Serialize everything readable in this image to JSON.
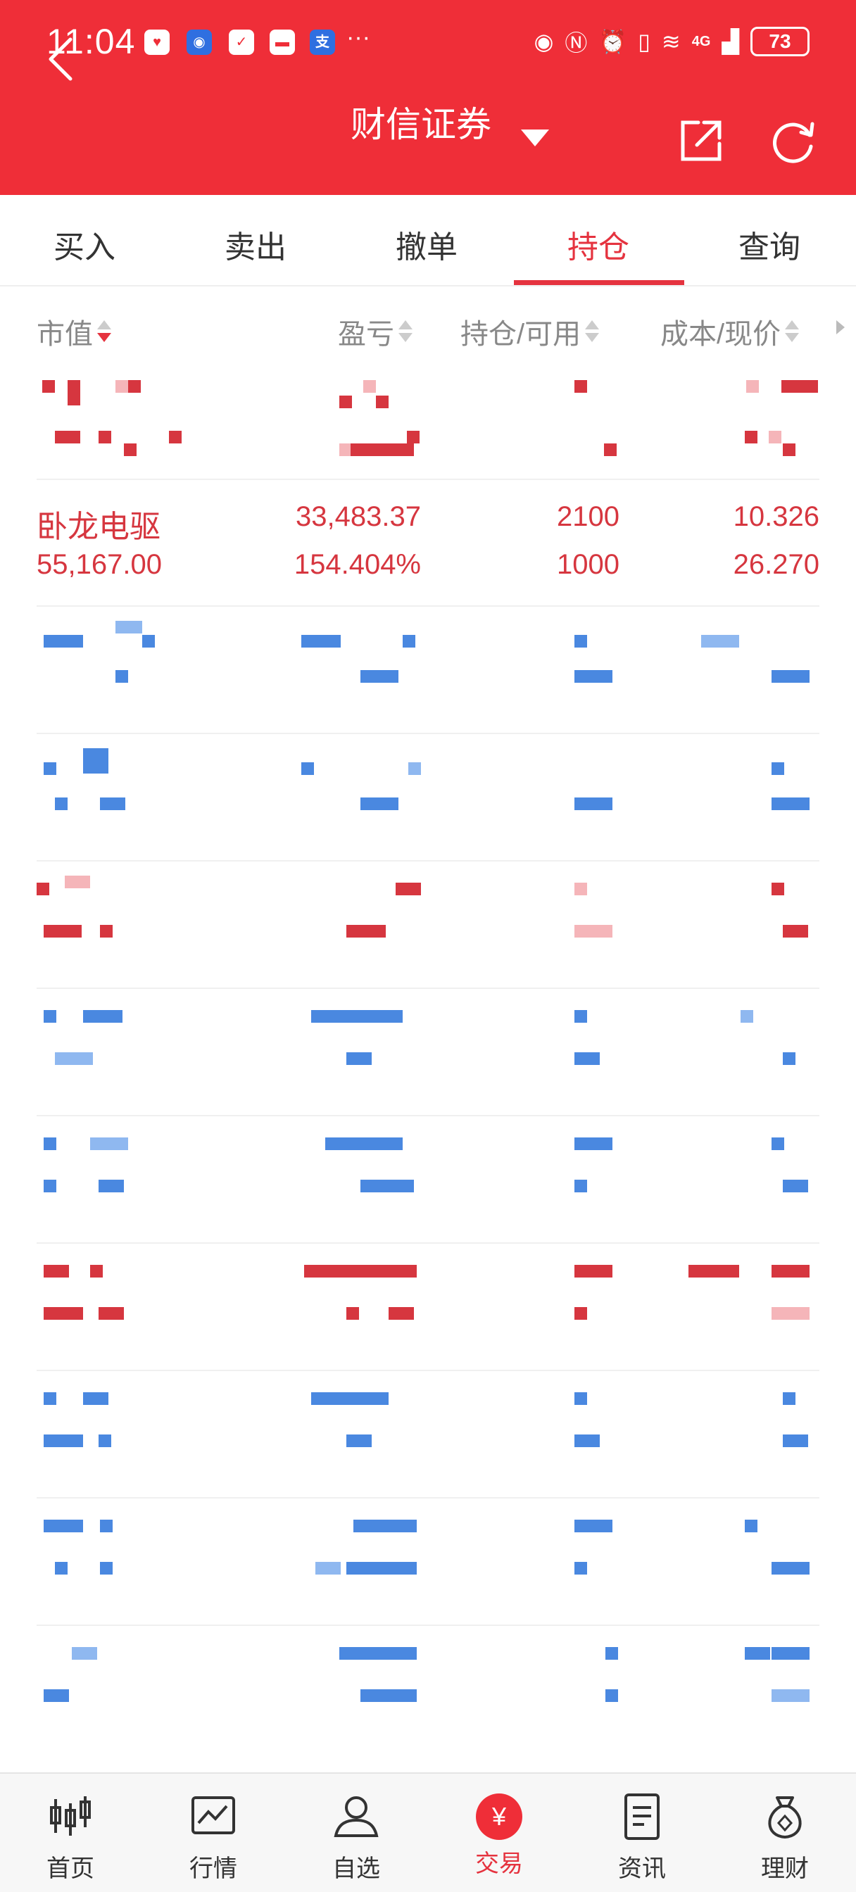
{
  "status_bar": {
    "time": "11:04",
    "battery": "73",
    "signal": "4G",
    "more": "···",
    "notification_icons": [
      "huawei-icon",
      "location-icon",
      "chat-icon",
      "book-icon",
      "alipay-icon"
    ]
  },
  "header": {
    "title": "财信证券",
    "back_icon": "back-icon",
    "share_icon": "share-icon",
    "refresh_icon": "refresh-icon"
  },
  "tabs": [
    {
      "label": "买入"
    },
    {
      "label": "卖出"
    },
    {
      "label": "撤单"
    },
    {
      "label": "持仓",
      "active": true
    },
    {
      "label": "查询"
    }
  ],
  "table_header": {
    "col1": "市值",
    "col2": "盈亏",
    "col3": "持仓/可用",
    "col4": "成本/现价"
  },
  "highlight_row": {
    "name": "卧龙电驱",
    "market_value": "55,167.00",
    "profit": "33,483.37",
    "profit_pct": "154.404%",
    "position": "2100",
    "available": "1000",
    "cost": "10.326",
    "price": "26.270"
  },
  "bottom_nav": [
    {
      "label": "首页",
      "icon": "candlestick-icon"
    },
    {
      "label": "行情",
      "icon": "chart-icon"
    },
    {
      "label": "自选",
      "icon": "user-icon"
    },
    {
      "label": "交易",
      "icon": "yuan-icon",
      "active": true
    },
    {
      "label": "资讯",
      "icon": "document-icon"
    },
    {
      "label": "理财",
      "icon": "money-bag-icon"
    }
  ],
  "colors": {
    "brand_red": "#ef2e38",
    "profit_red": "#d6363f",
    "loss_blue": "#4a88e0",
    "text_gray": "#888888"
  }
}
